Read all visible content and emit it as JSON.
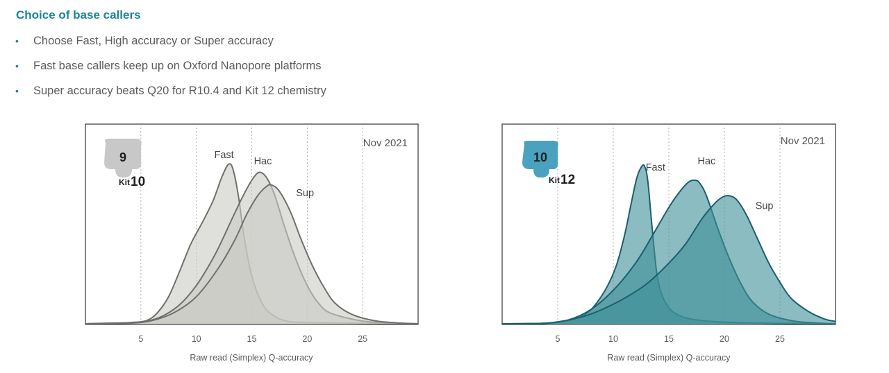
{
  "header": {
    "title": "Choice of base callers",
    "bullets": [
      "Choose Fast, High accuracy or Super accuracy",
      "Fast base callers keep up on Oxford Nanopore platforms",
      "Super accuracy beats Q20 for R10.4 and Kit 12 chemistry"
    ]
  },
  "chart_data": [
    {
      "type": "area",
      "date_label": "Nov 2021",
      "badge": {
        "flowcell": "9",
        "kit_prefix": "Kit",
        "kit_number": "10",
        "color": "#c8c8c8"
      },
      "xlabel": "Raw read (Simplex) Q-accuracy",
      "ylabel": "",
      "xticks": [
        5,
        10,
        15,
        20,
        25
      ],
      "xlim": [
        0,
        30
      ],
      "ylim": [
        0,
        1
      ],
      "grid": "vertical dashed",
      "fill_color": "#c9c9c5",
      "line_color": "#6f6f6b",
      "series": [
        {
          "name": "Fast",
          "x": [
            0,
            2,
            4,
            5.5,
            6.5,
            7.5,
            8.5,
            9.5,
            10.5,
            11.5,
            12.3,
            12.9,
            13.3,
            13.8,
            14.3,
            15,
            16,
            17,
            18,
            20,
            30
          ],
          "y": [
            0,
            0.004,
            0.008,
            0.02,
            0.07,
            0.17,
            0.33,
            0.5,
            0.63,
            0.77,
            0.92,
            1.0,
            0.97,
            0.8,
            0.55,
            0.3,
            0.12,
            0.05,
            0.02,
            0.008,
            0
          ]
        },
        {
          "name": "Hac",
          "x": [
            0,
            4,
            5.5,
            7,
            8.5,
            10,
            11.5,
            12.5,
            13.5,
            14.5,
            15.2,
            15.7,
            16.3,
            17,
            18,
            19,
            20,
            21,
            22,
            24,
            26,
            30
          ],
          "y": [
            0,
            0.005,
            0.015,
            0.05,
            0.12,
            0.24,
            0.41,
            0.55,
            0.7,
            0.84,
            0.92,
            0.95,
            0.92,
            0.82,
            0.6,
            0.4,
            0.24,
            0.13,
            0.07,
            0.03,
            0.01,
            0
          ]
        },
        {
          "name": "Sup",
          "x": [
            0,
            4,
            6,
            8,
            10,
            12,
            13.5,
            14.5,
            15.5,
            16.3,
            16.8,
            17.5,
            18.5,
            19.5,
            20.5,
            21.5,
            22.5,
            24,
            26,
            28,
            30
          ],
          "y": [
            0,
            0.004,
            0.02,
            0.07,
            0.17,
            0.35,
            0.53,
            0.68,
            0.8,
            0.86,
            0.87,
            0.83,
            0.7,
            0.52,
            0.36,
            0.23,
            0.13,
            0.06,
            0.02,
            0.006,
            0
          ]
        }
      ],
      "label_positions": [
        {
          "name": "Fast",
          "x": 12.5,
          "y": 1.04
        },
        {
          "name": "Hac",
          "x": 16.0,
          "y": 1.0
        },
        {
          "name": "Sup",
          "x": 19.8,
          "y": 0.8
        }
      ]
    },
    {
      "type": "area",
      "date_label": "Nov 2021",
      "badge": {
        "flowcell": "10",
        "kit_prefix": "Kit",
        "kit_number": "12",
        "color": "#4aa2bf"
      },
      "xlabel": "Raw read (Simplex) Q-accuracy",
      "ylabel": "",
      "xticks": [
        5,
        10,
        15,
        20,
        25
      ],
      "xlim": [
        0,
        30
      ],
      "ylim": [
        0,
        1
      ],
      "grid": "vertical dashed",
      "fill_color": "#3d8f98",
      "line_color": "#1a5f6e",
      "series": [
        {
          "name": "Fast",
          "x": [
            0,
            4,
            6,
            7.5,
            8.5,
            9.5,
            10.3,
            11,
            11.6,
            12.1,
            12.5,
            12.8,
            13.1,
            13.5,
            14,
            14.8,
            16,
            18,
            22,
            30
          ],
          "y": [
            0,
            0.004,
            0.02,
            0.06,
            0.13,
            0.24,
            0.37,
            0.55,
            0.75,
            0.91,
            0.98,
            0.99,
            0.9,
            0.6,
            0.28,
            0.12,
            0.05,
            0.02,
            0.006,
            0
          ]
        },
        {
          "name": "Hac",
          "x": [
            0,
            4,
            6,
            8,
            10,
            12,
            13.5,
            15,
            16,
            16.8,
            17.4,
            17.8,
            18.4,
            19.5,
            20.5,
            21.5,
            22.5,
            24,
            26,
            28,
            30
          ],
          "y": [
            0,
            0.004,
            0.025,
            0.09,
            0.21,
            0.38,
            0.55,
            0.73,
            0.83,
            0.89,
            0.9,
            0.88,
            0.8,
            0.58,
            0.4,
            0.25,
            0.14,
            0.06,
            0.02,
            0.006,
            0
          ]
        },
        {
          "name": "Sup",
          "x": [
            0,
            4,
            7,
            9,
            11,
            13,
            15,
            16.5,
            18,
            19.2,
            20,
            20.6,
            21.2,
            22,
            23,
            24,
            25,
            26,
            27.5,
            29,
            30
          ],
          "y": [
            0,
            0.004,
            0.04,
            0.09,
            0.16,
            0.25,
            0.38,
            0.5,
            0.66,
            0.76,
            0.8,
            0.8,
            0.77,
            0.68,
            0.53,
            0.38,
            0.26,
            0.16,
            0.08,
            0.03,
            0.015
          ]
        }
      ],
      "label_positions": [
        {
          "name": "Fast",
          "x": 13.8,
          "y": 0.96
        },
        {
          "name": "Hac",
          "x": 18.4,
          "y": 1.0
        },
        {
          "name": "Sup",
          "x": 23.6,
          "y": 0.72
        }
      ]
    }
  ]
}
